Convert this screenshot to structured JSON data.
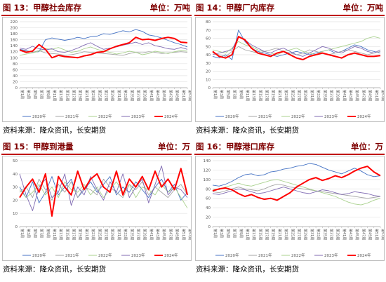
{
  "palette": {
    "y2020": "#4472c4",
    "y2021": "#a5a5a5",
    "y2022": "#a9d18e",
    "y2023": "#7f6ab2",
    "y2024": "#ff0000",
    "header": "#7f0000",
    "rule": "#c00000"
  },
  "panels": [
    {
      "title": "图 13：甲醇社会库存",
      "unit": "单位：万吨",
      "source": "资料来源：隆众资讯，长安期货"
    },
    {
      "title": "图 14：甲醇厂内库存",
      "unit": "单位：万吨",
      "source": "资料来源：隆众资讯，长安期货"
    },
    {
      "title": "图 15：甲醇到港量",
      "unit": "单位：万",
      "source": "资料来源：隆众资讯，长安期货"
    },
    {
      "title": "图 16：甲醇港口库存",
      "unit": "单位：万",
      "source": "资料来源：隆众资讯，长安期货"
    }
  ],
  "chart_data": [
    {
      "type": "line",
      "title": "图 13：甲醇社会库存",
      "ylim": [
        0,
        220
      ],
      "yticks": [
        0,
        20,
        40,
        60,
        80,
        100,
        120,
        140,
        160,
        180,
        200,
        220
      ],
      "categories": [
        "第1周",
        "第3周",
        "第5周",
        "第7周",
        "第9周",
        "第11周",
        "第13周",
        "第15周",
        "第17周",
        "第19周",
        "第21周",
        "第23周",
        "第25周",
        "第27周",
        "第29周",
        "第31周",
        "第33周",
        "第35周",
        "第37周",
        "第39周",
        "第41周",
        "第43周",
        "第45周",
        "第47周",
        "第49周",
        "第51周",
        "第53周"
      ],
      "series": [
        {
          "name": "2020年",
          "values": [
            128,
            124,
            118,
            120,
            160,
            166,
            162,
            158,
            162,
            168,
            164,
            170,
            172,
            180,
            178,
            184,
            190,
            186,
            194,
            188,
            176,
            172,
            166,
            158,
            150,
            144,
            136
          ]
        },
        {
          "name": "2021年",
          "values": [
            126,
            122,
            118,
            124,
            116,
            114,
            112,
            108,
            110,
            114,
            120,
            118,
            116,
            114,
            112,
            110,
            108,
            114,
            118,
            116,
            120,
            118,
            114,
            116,
            118,
            120,
            118
          ]
        },
        {
          "name": "2022年",
          "values": [
            108,
            112,
            116,
            122,
            130,
            128,
            134,
            126,
            118,
            122,
            130,
            136,
            128,
            122,
            118,
            112,
            116,
            122,
            118,
            110,
            114,
            122,
            118,
            114,
            120,
            124,
            122
          ]
        },
        {
          "name": "2023年",
          "values": [
            132,
            128,
            138,
            130,
            126,
            130,
            120,
            118,
            124,
            132,
            142,
            150,
            138,
            128,
            132,
            136,
            142,
            146,
            152,
            144,
            150,
            140,
            136,
            130,
            128,
            134,
            128
          ]
        },
        {
          "name": "2024年",
          "values": [
            126,
            118,
            122,
            144,
            128,
            100,
            108,
            104,
            102,
            100,
            106,
            110,
            118,
            120,
            130,
            138,
            144,
            150,
            168,
            160,
            162,
            158,
            164,
            168,
            164,
            152,
            150
          ]
        }
      ]
    },
    {
      "type": "line",
      "title": "图 14：甲醇厂内库存",
      "ylim": [
        0,
        80
      ],
      "yticks": [
        0,
        10,
        20,
        30,
        40,
        50,
        60,
        70,
        80
      ],
      "categories": [
        "第1周",
        "第3周",
        "第5周",
        "第7周",
        "第9周",
        "第11周",
        "第13周",
        "第15周",
        "第17周",
        "第19周",
        "第21周",
        "第23周",
        "第25周",
        "第27周",
        "第29周",
        "第31周",
        "第33周",
        "第35周",
        "第37周",
        "第39周",
        "第41周",
        "第43周",
        "第45周",
        "第47周",
        "第49周",
        "第51周",
        "第53周"
      ],
      "series": [
        {
          "name": "2020年",
          "values": [
            38,
            36,
            40,
            34,
            70,
            56,
            48,
            44,
            42,
            40,
            38,
            40,
            42,
            44,
            42,
            40,
            42,
            44,
            46,
            42,
            44,
            48,
            52,
            50,
            46,
            44,
            42
          ]
        },
        {
          "name": "2021年",
          "values": [
            42,
            40,
            38,
            44,
            50,
            46,
            44,
            42,
            44,
            46,
            48,
            44,
            42,
            40,
            42,
            46,
            44,
            42,
            40,
            42,
            44,
            46,
            44,
            42,
            40,
            42,
            44
          ]
        },
        {
          "name": "2022年",
          "values": [
            46,
            44,
            42,
            48,
            56,
            52,
            50,
            46,
            44,
            42,
            40,
            44,
            46,
            48,
            44,
            42,
            40,
            44,
            46,
            48,
            50,
            52,
            54,
            56,
            60,
            62,
            60
          ]
        },
        {
          "name": "2023年",
          "values": [
            40,
            42,
            44,
            46,
            62,
            58,
            52,
            48,
            44,
            42,
            46,
            48,
            44,
            40,
            38,
            42,
            46,
            50,
            48,
            44,
            42,
            46,
            50,
            48,
            44,
            42,
            46
          ]
        },
        {
          "name": "2024年",
          "values": [
            44,
            38,
            36,
            40,
            62,
            58,
            48,
            42,
            40,
            38,
            42,
            44,
            40,
            36,
            34,
            38,
            40,
            42,
            40,
            38,
            36,
            40,
            42,
            40,
            38,
            38,
            39
          ]
        }
      ]
    },
    {
      "type": "line",
      "title": "图 15：甲醇到港量",
      "ylim": [
        0,
        50
      ],
      "yticks": [
        0,
        10,
        20,
        30,
        40,
        50
      ],
      "categories": [
        "第1周",
        "第3周",
        "第5周",
        "第7周",
        "第9周",
        "第11周",
        "第13周",
        "第15周",
        "第17周",
        "第19周",
        "第21周",
        "第23周",
        "第25周",
        "第27周",
        "第29周",
        "第31周",
        "第33周",
        "第35周",
        "第37周",
        "第39周",
        "第41周",
        "第43周",
        "第45周",
        "第47周",
        "第49周",
        "第51周",
        "第53周"
      ],
      "series": [
        {
          "name": "2020年",
          "values": [
            30,
            22,
            34,
            18,
            26,
            38,
            24,
            30,
            36,
            22,
            28,
            34,
            26,
            32,
            38,
            24,
            30,
            26,
            34,
            28,
            22,
            30,
            36,
            26,
            32,
            20,
            26
          ]
        },
        {
          "name": "2021年",
          "values": [
            26,
            30,
            22,
            36,
            28,
            20,
            32,
            26,
            34,
            22,
            30,
            28,
            24,
            36,
            30,
            26,
            22,
            32,
            28,
            34,
            24,
            30,
            26,
            22,
            28,
            32,
            24
          ]
        },
        {
          "name": "2022年",
          "values": [
            28,
            22,
            26,
            32,
            24,
            30,
            22,
            34,
            28,
            26,
            32,
            24,
            30,
            22,
            28,
            34,
            26,
            32,
            22,
            30,
            28,
            24,
            32,
            26,
            30,
            22,
            14
          ]
        },
        {
          "name": "2023年",
          "values": [
            40,
            24,
            12,
            30,
            36,
            22,
            26,
            40,
            16,
            30,
            24,
            38,
            28,
            20,
            34,
            26,
            40,
            22,
            30,
            36,
            18,
            32,
            46,
            24,
            30,
            28,
            22
          ]
        },
        {
          "name": "2024年",
          "values": [
            22,
            30,
            36,
            26,
            40,
            8,
            38,
            30,
            24,
            42,
            28,
            36,
            40,
            30,
            26,
            42,
            24,
            36,
            30,
            38,
            28,
            42,
            30,
            36,
            28,
            44,
            24
          ]
        }
      ]
    },
    {
      "type": "line",
      "title": "图 16：甲醇港口库存",
      "ylim": [
        0,
        140
      ],
      "yticks": [
        0,
        20,
        40,
        60,
        80,
        100,
        120,
        140
      ],
      "categories": [
        "第1周",
        "第3周",
        "第5周",
        "第7周",
        "第9周",
        "第11周",
        "第13周",
        "第15周",
        "第17周",
        "第19周",
        "第21周",
        "第23周",
        "第25周",
        "第27周",
        "第29周",
        "第31周",
        "第33周",
        "第35周",
        "第37周",
        "第39周",
        "第41周",
        "第43周",
        "第45周",
        "第47周",
        "第49周",
        "第51周",
        "第53周"
      ],
      "series": [
        {
          "name": "2020年",
          "values": [
            88,
            86,
            90,
            96,
            104,
            110,
            112,
            108,
            110,
            116,
            118,
            122,
            124,
            128,
            130,
            134,
            132,
            126,
            120,
            116,
            112,
            118,
            124,
            118,
            110,
            106,
            108
          ]
        },
        {
          "name": "2021年",
          "values": [
            74,
            72,
            76,
            80,
            84,
            80,
            78,
            76,
            80,
            86,
            90,
            88,
            84,
            82,
            80,
            78,
            76,
            74,
            72,
            70,
            68,
            66,
            64,
            62,
            60,
            62,
            64
          ]
        },
        {
          "name": "2022年",
          "values": [
            80,
            78,
            84,
            88,
            92,
            88,
            86,
            90,
            94,
            98,
            100,
            96,
            92,
            88,
            84,
            80,
            76,
            72,
            68,
            64,
            58,
            52,
            48,
            46,
            50,
            56,
            60
          ]
        },
        {
          "name": "2023年",
          "values": [
            70,
            68,
            72,
            76,
            80,
            78,
            74,
            70,
            72,
            76,
            80,
            84,
            80,
            76,
            72,
            70,
            74,
            78,
            76,
            72,
            68,
            70,
            74,
            72,
            70,
            66,
            64
          ]
        },
        {
          "name": "2024年",
          "values": [
            76,
            80,
            82,
            78,
            70,
            64,
            68,
            62,
            58,
            60,
            56,
            64,
            72,
            84,
            92,
            100,
            104,
            98,
            102,
            108,
            104,
            110,
            118,
            124,
            128,
            116,
            108
          ]
        }
      ]
    }
  ]
}
